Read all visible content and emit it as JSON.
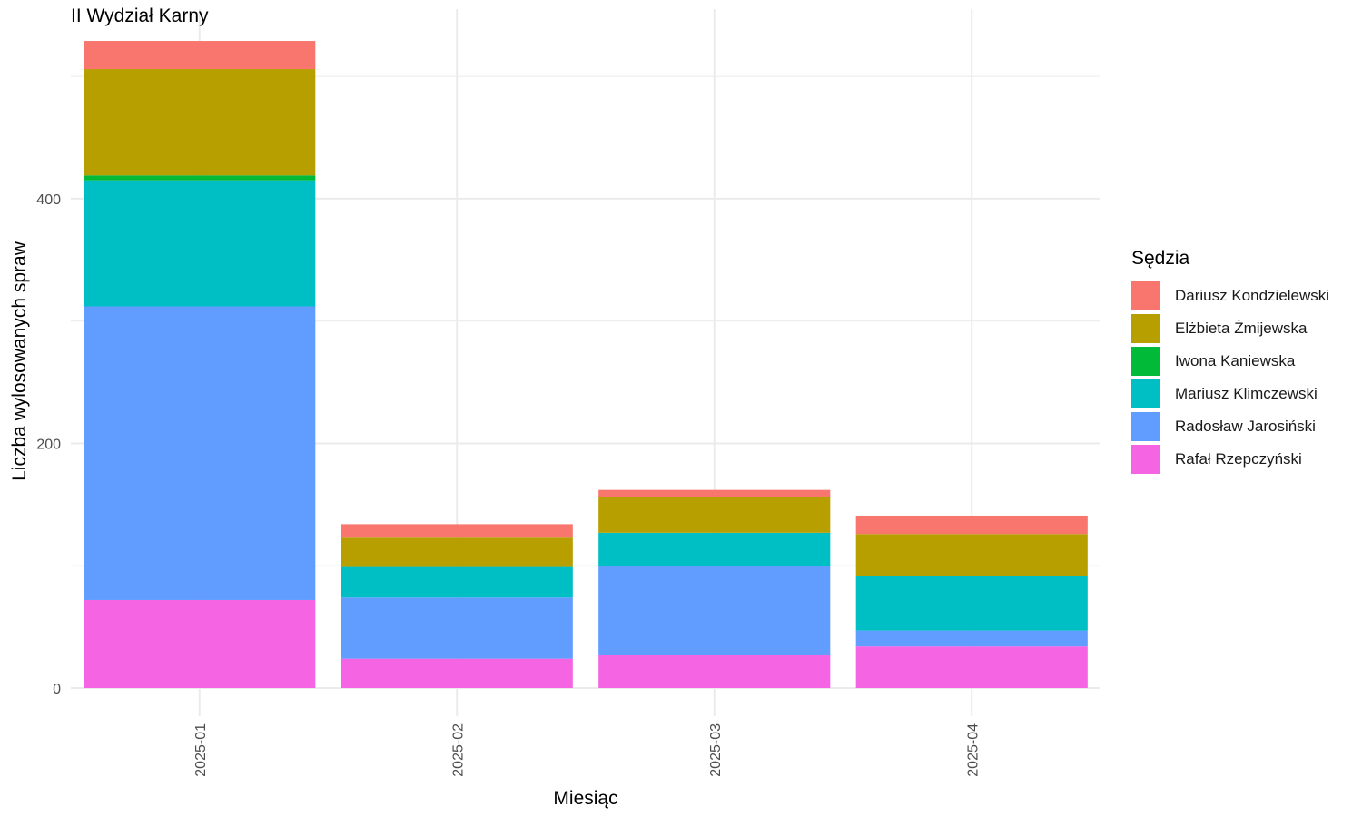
{
  "chart_data": {
    "type": "bar",
    "stacked": true,
    "title": "II Wydział Karny",
    "xlabel": "Miesiąc",
    "ylabel": "Liczba wylosowanych spraw",
    "ylim": [
      -23,
      555
    ],
    "yticks": [
      0,
      200,
      400
    ],
    "grid": true,
    "legend_title": "Sędzia",
    "legend_position": "right",
    "categories": [
      "2025-01",
      "2025-02",
      "2025-03",
      "2025-04"
    ],
    "series": [
      {
        "name": "Rafał Rzepczyński",
        "color": "#F564E3",
        "values": [
          72,
          24,
          27,
          34
        ]
      },
      {
        "name": "Radosław Jarosiński",
        "color": "#619CFF",
        "values": [
          240,
          50,
          73,
          13
        ]
      },
      {
        "name": "Mariusz Klimczewski",
        "color": "#00BFC4",
        "values": [
          103,
          25,
          27,
          45
        ]
      },
      {
        "name": "Iwona Kaniewska",
        "color": "#00BA38",
        "values": [
          4,
          0,
          0,
          0
        ]
      },
      {
        "name": "Elżbieta Żmijewska",
        "color": "#B79F00",
        "values": [
          87,
          24,
          29,
          34
        ]
      },
      {
        "name": "Dariusz Kondzielewski",
        "color": "#F8766D",
        "values": [
          23,
          11,
          6,
          15
        ]
      }
    ],
    "legend_order": [
      "Dariusz Kondzielewski",
      "Elżbieta Żmijewska",
      "Iwona Kaniewska",
      "Mariusz Klimczewski",
      "Radosław Jarosiński",
      "Rafał Rzepczyński"
    ]
  }
}
